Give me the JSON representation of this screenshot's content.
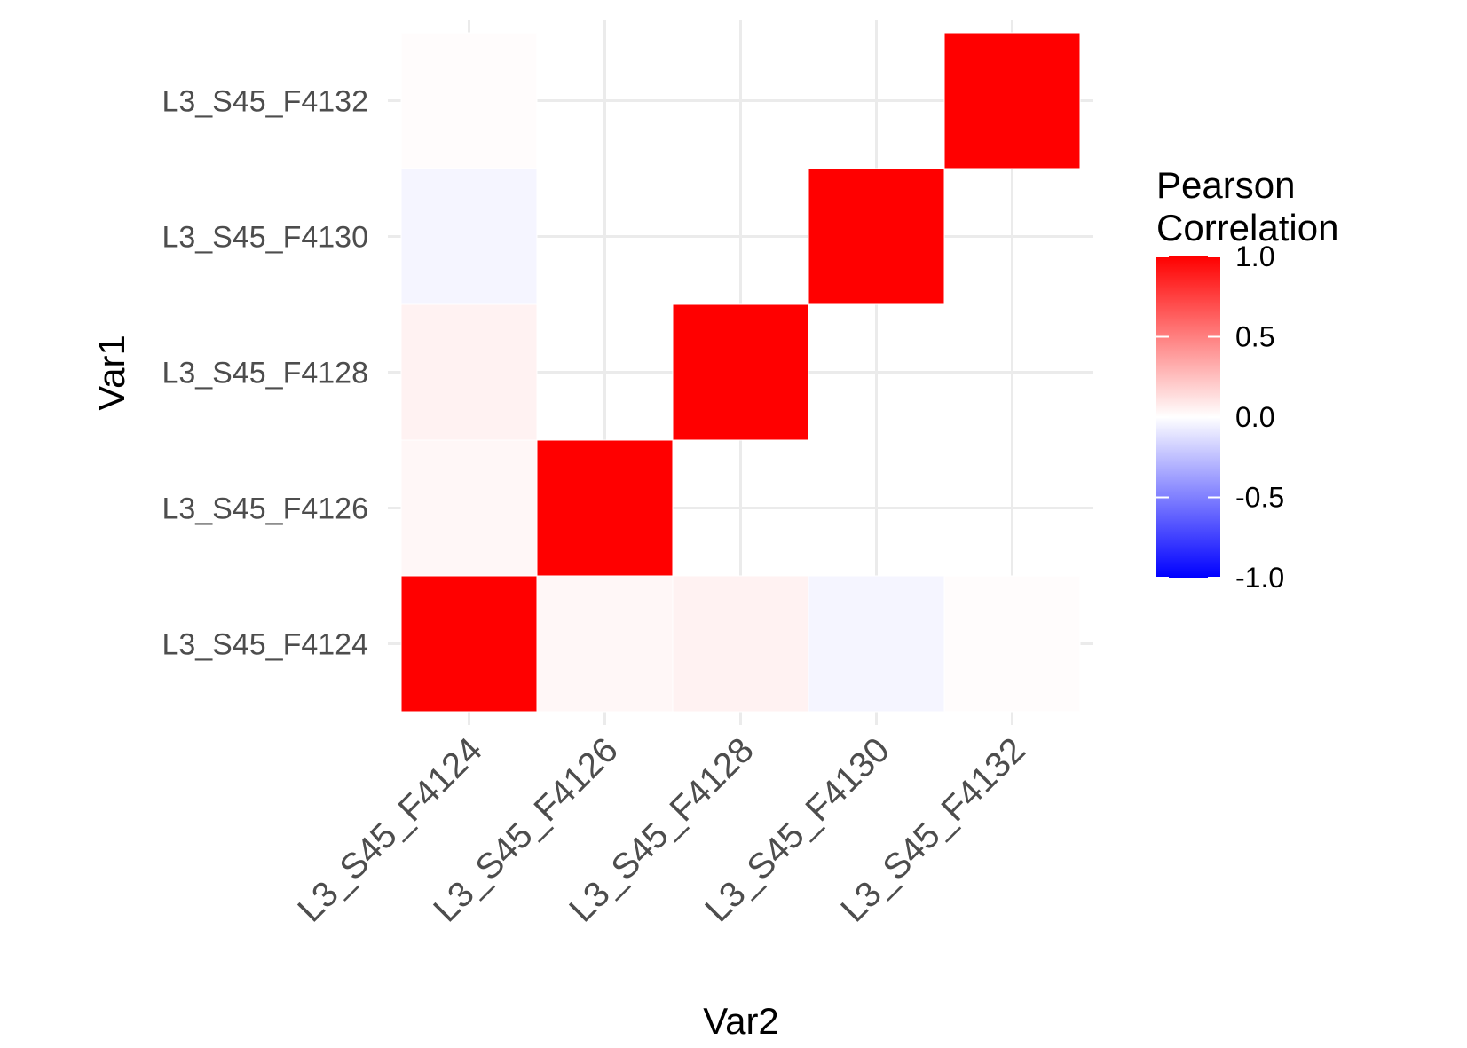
{
  "chart_data": {
    "type": "heatmap",
    "x_categories": [
      "L3_S45_F4124",
      "L3_S45_F4126",
      "L3_S45_F4128",
      "L3_S45_F4130",
      "L3_S45_F4132"
    ],
    "y_categories": [
      "L3_S45_F4124",
      "L3_S45_F4126",
      "L3_S45_F4128",
      "L3_S45_F4130",
      "L3_S45_F4132"
    ],
    "cells": [
      {
        "x": "L3_S45_F4124",
        "y": "L3_S45_F4124",
        "value": 1.0
      },
      {
        "x": "L3_S45_F4126",
        "y": "L3_S45_F4124",
        "value": 0.03
      },
      {
        "x": "L3_S45_F4128",
        "y": "L3_S45_F4124",
        "value": 0.05
      },
      {
        "x": "L3_S45_F4130",
        "y": "L3_S45_F4124",
        "value": -0.04
      },
      {
        "x": "L3_S45_F4132",
        "y": "L3_S45_F4124",
        "value": 0.01
      },
      {
        "x": "L3_S45_F4124",
        "y": "L3_S45_F4126",
        "value": 0.03
      },
      {
        "x": "L3_S45_F4126",
        "y": "L3_S45_F4126",
        "value": 1.0
      },
      {
        "x": "L3_S45_F4124",
        "y": "L3_S45_F4128",
        "value": 0.05
      },
      {
        "x": "L3_S45_F4128",
        "y": "L3_S45_F4128",
        "value": 1.0
      },
      {
        "x": "L3_S45_F4124",
        "y": "L3_S45_F4130",
        "value": -0.04
      },
      {
        "x": "L3_S45_F4130",
        "y": "L3_S45_F4130",
        "value": 1.0
      },
      {
        "x": "L3_S45_F4124",
        "y": "L3_S45_F4132",
        "value": 0.01
      },
      {
        "x": "L3_S45_F4132",
        "y": "L3_S45_F4132",
        "value": 1.0
      }
    ],
    "xlabel": "Var2",
    "ylabel": "Var1",
    "legend": {
      "title_lines": [
        "Pearson",
        "Correlation"
      ],
      "ticks": [
        1.0,
        0.5,
        0.0,
        -0.5,
        -1.0
      ],
      "tick_labels": [
        "1.0",
        "0.5",
        "0.0",
        "-0.5",
        "-1.0"
      ],
      "limits": [
        -1,
        1
      ],
      "low_color": "#0000ff",
      "mid_color": "#ffffff",
      "high_color": "#ff0000",
      "placement": "right"
    },
    "grid": true,
    "grid_color": "#ebebeb"
  }
}
